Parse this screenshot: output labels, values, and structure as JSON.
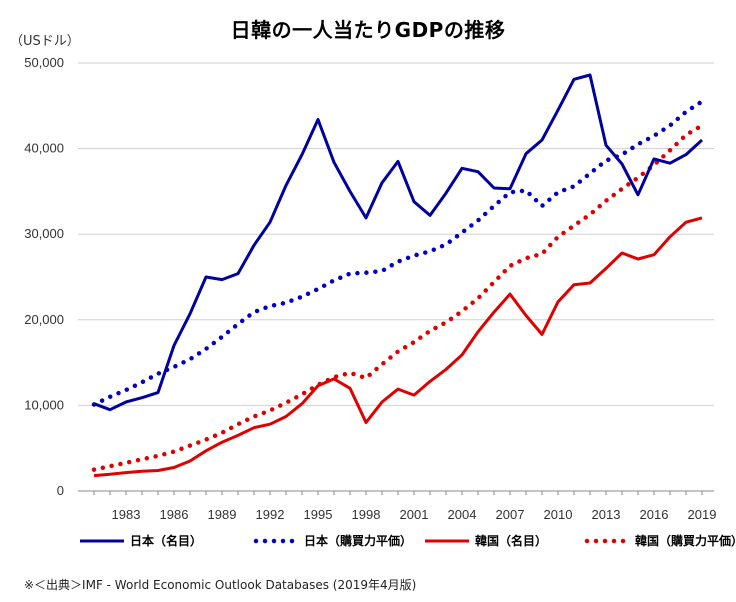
{
  "chart_data": {
    "type": "line",
    "title": "日韓の一人当たりGDPの推移",
    "ylabel": "（USドル）",
    "ylim": [
      0,
      50000
    ],
    "xlim": [
      1981,
      2019
    ],
    "y_ticks": [
      0,
      10000,
      20000,
      30000,
      40000,
      50000
    ],
    "y_tick_labels": [
      "0",
      "10,000",
      "20,000",
      "30,000",
      "40,000",
      "50,000"
    ],
    "x_tick_labels": [
      "1983",
      "1986",
      "1989",
      "1992",
      "1995",
      "1998",
      "2001",
      "2004",
      "2007",
      "2010",
      "2013",
      "2016",
      "2019"
    ],
    "grid": "horizontal",
    "legend_position": "bottom",
    "x": [
      1981,
      1982,
      1983,
      1984,
      1985,
      1986,
      1987,
      1988,
      1989,
      1990,
      1991,
      1992,
      1993,
      1994,
      1995,
      1996,
      1997,
      1998,
      1999,
      2000,
      2001,
      2002,
      2003,
      2004,
      2005,
      2006,
      2007,
      2008,
      2009,
      2010,
      2011,
      2012,
      2013,
      2014,
      2015,
      2016,
      2017,
      2018,
      2019
    ],
    "series": [
      {
        "name": "日本（名目）",
        "color": "#0000a0",
        "style": "solid",
        "values": [
          10200,
          9500,
          10400,
          10900,
          11500,
          17000,
          20700,
          25000,
          24700,
          25400,
          28700,
          31400,
          35700,
          39300,
          43400,
          38400,
          35000,
          31900,
          36000,
          38500,
          33800,
          32200,
          34800,
          37700,
          37300,
          35400,
          35300,
          39400,
          41000,
          44500,
          48100,
          48600,
          40400,
          38200,
          34600,
          38800,
          38300,
          39300,
          41000
        ]
      },
      {
        "name": "日本（購買力平価）",
        "color": "#0000c8",
        "style": "dotted",
        "values": [
          10100,
          11000,
          11800,
          12700,
          13700,
          14500,
          15400,
          16600,
          18000,
          19500,
          20900,
          21600,
          22000,
          22700,
          23600,
          24600,
          25400,
          25500,
          25700,
          26800,
          27500,
          28000,
          28800,
          30200,
          31600,
          33300,
          34900,
          35100,
          33300,
          34900,
          35600,
          37100,
          38600,
          39300,
          40500,
          41500,
          42700,
          44300,
          45500
        ]
      },
      {
        "name": "韓国（名目）",
        "color": "#e00000",
        "style": "solid",
        "values": [
          1800,
          1950,
          2150,
          2300,
          2400,
          2750,
          3500,
          4700,
          5700,
          6500,
          7400,
          7800,
          8700,
          10200,
          12300,
          13100,
          12000,
          8000,
          10400,
          11900,
          11200,
          12800,
          14200,
          15900,
          18600,
          20900,
          23000,
          20500,
          18300,
          22100,
          24100,
          24300,
          26000,
          27800,
          27100,
          27600,
          29700,
          31400,
          31900
        ]
      },
      {
        "name": "韓国（購買力平価）",
        "color": "#e00000",
        "style": "dotted",
        "values": [
          2500,
          2900,
          3300,
          3700,
          4100,
          4600,
          5300,
          6000,
          6800,
          7800,
          8700,
          9400,
          10300,
          11300,
          12400,
          13300,
          13800,
          13200,
          14800,
          16300,
          17400,
          18700,
          19700,
          21000,
          22500,
          24400,
          26300,
          27200,
          27700,
          29700,
          31000,
          32300,
          33900,
          35300,
          36600,
          38100,
          39800,
          41600,
          42700
        ]
      }
    ],
    "source": "※＜出典＞IMF - World Economic Outlook Databases (2019年4月版)"
  }
}
